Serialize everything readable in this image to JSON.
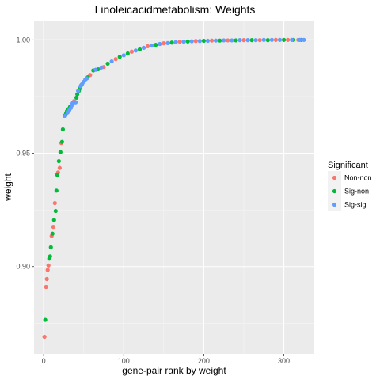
{
  "chart_data": {
    "type": "scatter",
    "title": "Linoleicacidmetabolism: Weights",
    "xlabel": "gene-pair rank by weight",
    "ylabel": "weight",
    "xlim": [
      -12,
      338
    ],
    "ylim": [
      0.8615,
      1.0085
    ],
    "x_ticks": [
      0,
      100,
      200,
      300
    ],
    "x_tick_labels": [
      "0",
      "100",
      "200",
      "300"
    ],
    "y_ticks": [
      0.9,
      0.95,
      1.0
    ],
    "y_tick_labels": [
      "0.90",
      "0.95",
      "1.00"
    ],
    "grid": true,
    "legend": {
      "title": "Significant",
      "position": "right",
      "items": [
        {
          "label": "Non-non",
          "color": "#F8766D"
        },
        {
          "label": "Sig-non",
          "color": "#00BA38"
        },
        {
          "label": "Sig-sig",
          "color": "#619CFF"
        }
      ]
    },
    "series": [
      {
        "name": "Non-non",
        "color": "#F8766D",
        "points": [
          [
            1,
            0.869
          ],
          [
            3,
            0.891
          ],
          [
            4,
            0.8945
          ],
          [
            5,
            0.8985
          ],
          [
            6,
            0.9005
          ],
          [
            10,
            0.9135
          ],
          [
            12,
            0.9175
          ],
          [
            14,
            0.928
          ],
          [
            18,
            0.9415
          ],
          [
            20,
            0.9435
          ],
          [
            22,
            0.9545
          ],
          [
            38,
            0.973
          ],
          [
            58,
            0.9845
          ],
          [
            75,
            0.988
          ],
          [
            90,
            0.9915
          ],
          [
            110,
            0.9948
          ],
          [
            130,
            0.9972
          ],
          [
            150,
            0.9985
          ],
          [
            170,
            0.9992
          ],
          [
            190,
            0.9995
          ],
          [
            210,
            0.9997
          ],
          [
            230,
            0.9998
          ],
          [
            250,
            0.9999
          ],
          [
            270,
            0.9999
          ],
          [
            290,
            1.0
          ],
          [
            305,
            1.0
          ],
          [
            318,
            1.0
          ]
        ]
      },
      {
        "name": "Sig-non",
        "color": "#00BA38",
        "points": [
          [
            2,
            0.8765
          ],
          [
            7,
            0.9035
          ],
          [
            8,
            0.9045
          ],
          [
            9,
            0.9085
          ],
          [
            11,
            0.9145
          ],
          [
            13,
            0.9205
          ],
          [
            15,
            0.9245
          ],
          [
            16,
            0.9335
          ],
          [
            17,
            0.9405
          ],
          [
            19,
            0.9465
          ],
          [
            21,
            0.9505
          ],
          [
            23,
            0.955
          ],
          [
            24,
            0.9605
          ],
          [
            26,
            0.9665
          ],
          [
            28,
            0.9675
          ],
          [
            29,
            0.9685
          ],
          [
            31,
            0.9695
          ],
          [
            33,
            0.9705
          ],
          [
            41,
            0.9745
          ],
          [
            42,
            0.976
          ],
          [
            44,
            0.9775
          ],
          [
            45,
            0.9785
          ],
          [
            47,
            0.98
          ],
          [
            55,
            0.9835
          ],
          [
            62,
            0.9865
          ],
          [
            68,
            0.987
          ],
          [
            80,
            0.9895
          ],
          [
            95,
            0.9925
          ],
          [
            105,
            0.994
          ],
          [
            120,
            0.9958
          ],
          [
            140,
            0.9978
          ],
          [
            160,
            0.9988
          ],
          [
            180,
            0.9993
          ],
          [
            200,
            0.9996
          ],
          [
            220,
            0.9997
          ],
          [
            240,
            0.9998
          ],
          [
            260,
            0.9999
          ],
          [
            280,
            0.9999
          ],
          [
            300,
            1.0
          ],
          [
            312,
            1.0
          ],
          [
            322,
            1.0
          ]
        ]
      },
      {
        "name": "Sig-sig",
        "color": "#619CFF",
        "points": [
          [
            27,
            0.9665
          ],
          [
            30,
            0.968
          ],
          [
            32,
            0.969
          ],
          [
            34,
            0.97
          ],
          [
            35,
            0.971
          ],
          [
            36,
            0.972
          ],
          [
            37,
            0.9725
          ],
          [
            39,
            0.9725
          ],
          [
            40,
            0.9725
          ],
          [
            43,
            0.9775
          ],
          [
            46,
            0.9795
          ],
          [
            48,
            0.9805
          ],
          [
            50,
            0.9815
          ],
          [
            52,
            0.9825
          ],
          [
            54,
            0.983
          ],
          [
            65,
            0.9868
          ],
          [
            72,
            0.9878
          ],
          [
            85,
            0.9905
          ],
          [
            100,
            0.9932
          ],
          [
            115,
            0.9953
          ],
          [
            125,
            0.9965
          ],
          [
            135,
            0.9975
          ],
          [
            145,
            0.9982
          ],
          [
            155,
            0.9986
          ],
          [
            165,
            0.999
          ],
          [
            175,
            0.9992
          ],
          [
            185,
            0.9994
          ],
          [
            195,
            0.9995
          ],
          [
            205,
            0.9996
          ],
          [
            215,
            0.9997
          ],
          [
            225,
            0.9998
          ],
          [
            235,
            0.9998
          ],
          [
            245,
            0.9999
          ],
          [
            255,
            0.9999
          ],
          [
            265,
            0.9999
          ],
          [
            275,
            1.0
          ],
          [
            285,
            1.0
          ],
          [
            295,
            1.0
          ],
          [
            310,
            1.0
          ],
          [
            320,
            1.0
          ],
          [
            325,
            1.0
          ]
        ]
      }
    ]
  }
}
